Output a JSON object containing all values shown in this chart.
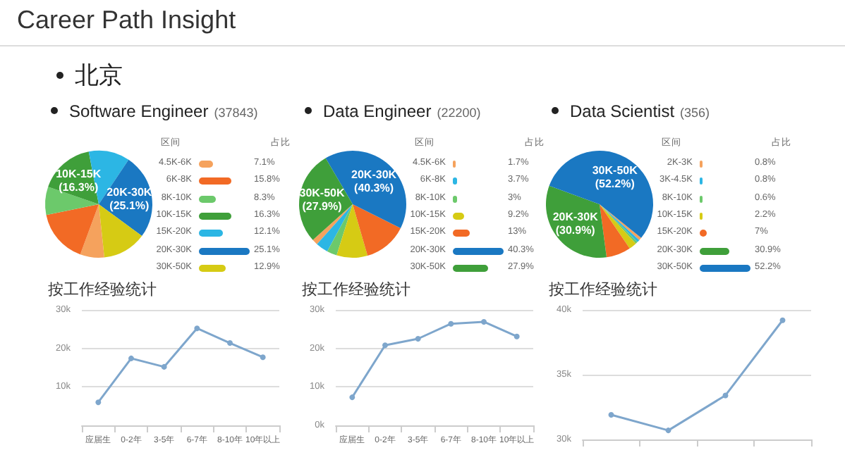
{
  "chart_data": [
    {
      "type": "other",
      "title": "Career Path Insight",
      "subtitle": "北京"
    },
    {
      "type": "pie",
      "title": "Software Engineer",
      "subtitle": "(37843)",
      "legend": "right",
      "legend_title": "区间",
      "categories": [
        "4.5K-6K",
        "6K-8K",
        "8K-10K",
        "10K-15K",
        "15K-20K",
        "20K-30K",
        "30K-50K"
      ],
      "values": [
        7.1,
        15.8,
        8.3,
        16.3,
        12.1,
        25.1,
        12.9
      ],
      "colors": [
        "#f5a25d",
        "#f26a25",
        "#6cc96b",
        "#3f9f3a",
        "#2cb6e4",
        "#1a78c2",
        "#d6cb14"
      ],
      "value_labels": [
        null,
        null,
        null,
        "10K-15K\n(16.3%)",
        null,
        "20K-30K\n(25.1%)",
        null
      ],
      "annotations": [
        "占比",
        {
          "text": "7.1%",
          "x": "4.5K-6K"
        },
        {
          "text": "15.8%",
          "x": "6K-8K"
        },
        {
          "text": "8.3%",
          "x": "8K-10K"
        },
        {
          "text": "16.3%",
          "x": "10K-15K"
        },
        {
          "text": "12.1%",
          "x": "15K-20K"
        },
        {
          "text": "25.1%",
          "x": "20K-30K"
        },
        {
          "text": "12.9%",
          "x": "30K-50K"
        }
      ]
    },
    {
      "type": "pie",
      "title": "Data Engineer",
      "subtitle": "(22200)",
      "legend": "right",
      "legend_title": "区间",
      "categories": [
        "4.5K-6K",
        "6K-8K",
        "8K-10K",
        "10K-15K",
        "15K-20K",
        "20K-30K",
        "30K-50K"
      ],
      "values": [
        1.7,
        3.7,
        3,
        9.2,
        13,
        40.3,
        27.9
      ],
      "colors": [
        "#f5a25d",
        "#2cb6e4",
        "#6cc96b",
        "#d6cb14",
        "#f26a25",
        "#1a78c2",
        "#3f9f3a"
      ],
      "value_labels": [
        null,
        null,
        null,
        null,
        null,
        "20K-30K\n(40.3%)",
        "30K-50K\n(27.9%)"
      ],
      "annotations": [
        "占比",
        {
          "text": "1.7%",
          "x": "4.5K-6K"
        },
        {
          "text": "3.7%",
          "x": "6K-8K"
        },
        {
          "text": "3%",
          "x": "8K-10K"
        },
        {
          "text": "9.2%",
          "x": "10K-15K"
        },
        {
          "text": "13%",
          "x": "15K-20K"
        },
        {
          "text": "40.3%",
          "x": "20K-30K"
        },
        {
          "text": "27.9%",
          "x": "30K-50K"
        }
      ]
    },
    {
      "type": "pie",
      "title": "Data Scientist",
      "subtitle": "(356)",
      "legend": "right",
      "legend_title": "区间",
      "categories": [
        "2K-3K",
        "3K-4.5K",
        "8K-10K",
        "10K-15K",
        "15K-20K",
        "20K-30K",
        "30K-50K"
      ],
      "values": [
        0.8,
        0.8,
        0.6,
        2.2,
        7,
        30.9,
        52.2
      ],
      "colors": [
        "#f5a25d",
        "#2cb6e4",
        "#6cc96b",
        "#d6cb14",
        "#f26a25",
        "#3f9f3a",
        "#1a78c2"
      ],
      "value_labels": [
        null,
        null,
        null,
        null,
        null,
        "20K-30K\n(30.9%)",
        "30K-50K\n(52.2%)"
      ],
      "annotations": [
        "占比",
        {
          "text": "0.8%",
          "x": "2K-3K"
        },
        {
          "text": "0.8%",
          "x": "3K-4.5K"
        },
        {
          "text": "0.6%",
          "x": "8K-10K"
        },
        {
          "text": "2.2%",
          "x": "10K-15K"
        },
        {
          "text": "7%",
          "x": "15K-20K"
        },
        {
          "text": "30.9%",
          "x": "20K-30K"
        },
        {
          "text": "52.2%",
          "x": "30K-50K"
        }
      ]
    },
    {
      "type": "line",
      "title": "按工作经验统计",
      "categories": [
        "应届生",
        "0-2年",
        "3-5年",
        "6-7年",
        "8-10年",
        "10年以上"
      ],
      "values": [
        6.0,
        17.4,
        15.2,
        25.2,
        21.4,
        17.7
      ],
      "color": "#7ea6cc",
      "marker": "circle",
      "grid": "y",
      "legend": false,
      "ylim": [
        0,
        30
      ],
      "yticks": [
        {
          "value": 0,
          "label": null
        },
        {
          "value": 10,
          "label": "10k"
        },
        {
          "value": 20,
          "label": "20k"
        },
        {
          "value": 30,
          "label": "30k"
        }
      ]
    },
    {
      "type": "line",
      "title": "按工作经验统计",
      "categories": [
        "应届生",
        "0-2年",
        "3-5年",
        "6-7年",
        "8-10年",
        "10年以上"
      ],
      "values": [
        7.3,
        20.8,
        22.5,
        26.4,
        26.9,
        23.1
      ],
      "color": "#7ea6cc",
      "marker": "circle",
      "grid": "y",
      "legend": false,
      "ylim": [
        0,
        30
      ],
      "yticks": [
        {
          "value": 0,
          "label": "0k"
        },
        {
          "value": 10,
          "label": "10k"
        },
        {
          "value": 20,
          "label": "20k"
        },
        {
          "value": 30,
          "label": "30k"
        }
      ]
    },
    {
      "type": "line",
      "title": "按工作经验统计",
      "categories": [
        null,
        null,
        null,
        null
      ],
      "tick_labels": "y",
      "values": [
        31.9,
        30.7,
        33.4,
        39.2
      ],
      "color": "#7ea6cc",
      "marker": "circle",
      "grid": "y",
      "legend": false,
      "ylim": [
        30,
        40
      ],
      "yticks": [
        {
          "value": 30,
          "label": "30k"
        },
        {
          "value": 35,
          "label": "35k"
        },
        {
          "value": 40,
          "label": "40k"
        }
      ]
    }
  ]
}
